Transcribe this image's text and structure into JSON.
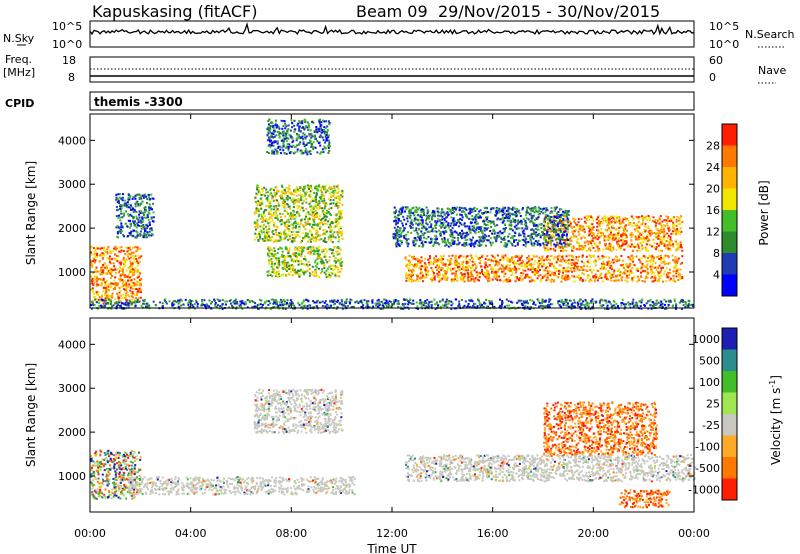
{
  "header": {
    "station": "Kapuskasing (fitACF)",
    "beam": "Beam 09",
    "dates": "29/Nov/2015 - 30/Nov/2015"
  },
  "noise_panel": {
    "left_label": "N.Sky",
    "left_ticks": [
      "10^5",
      "10^0"
    ],
    "right_ticks": [
      "10^5",
      "10^0"
    ],
    "right_label": "N.Search"
  },
  "freq_panel": {
    "left_label_1": "Freq.",
    "left_label_2": "[MHz]",
    "left_ticks": [
      "18",
      "8"
    ],
    "right_ticks": [
      "60",
      "0"
    ],
    "right_label": "Nave"
  },
  "cpid": {
    "label": "CPID",
    "program": "themis -3300"
  },
  "x_axis": {
    "label": "Time UT",
    "ticks": [
      "00:00",
      "04:00",
      "08:00",
      "12:00",
      "16:00",
      "20:00",
      "00:00"
    ]
  },
  "chart_data": [
    {
      "type": "heatmap",
      "name": "power",
      "xlabel": "Time UT",
      "ylabel": "Slant Range [km]",
      "xlim_hours": [
        0,
        24
      ],
      "ylim": [
        180,
        4600
      ],
      "y_ticks": [
        1000,
        2000,
        3000,
        4000
      ],
      "colorbar": {
        "label": "Power [dB]",
        "tick_labels": [
          "4",
          "8",
          "12",
          "16",
          "20",
          "24",
          "28"
        ],
        "colors": [
          "#0000ff",
          "#1e3cb4",
          "#2d8c2d",
          "#41be28",
          "#f0e600",
          "#ffb400",
          "#ff7800",
          "#ff1e00"
        ]
      },
      "echo_regions": [
        {
          "t": [
            0.0,
            2.0
          ],
          "range": [
            300,
            1600
          ],
          "power": "high"
        },
        {
          "t": [
            1.0,
            2.5
          ],
          "range": [
            1800,
            2800
          ],
          "power": "low"
        },
        {
          "t": [
            6.5,
            10.0
          ],
          "range": [
            1700,
            3000
          ],
          "power": "medium"
        },
        {
          "t": [
            7.0,
            9.5
          ],
          "range": [
            3700,
            4500
          ],
          "power": "low"
        },
        {
          "t": [
            7.0,
            10.0
          ],
          "range": [
            900,
            1600
          ],
          "power": "medium"
        },
        {
          "t": [
            12.5,
            23.5
          ],
          "range": [
            800,
            1400
          ],
          "power": "high"
        },
        {
          "t": [
            18.0,
            23.5
          ],
          "range": [
            1500,
            2300
          ],
          "power": "high"
        },
        {
          "t": [
            12.0,
            19.0
          ],
          "range": [
            1600,
            2500
          ],
          "power": "low"
        },
        {
          "t": [
            0.0,
            24.0
          ],
          "range": [
            180,
            400
          ],
          "power": "low"
        }
      ]
    },
    {
      "type": "heatmap",
      "name": "velocity",
      "xlabel": "Time UT",
      "ylabel": "Slant Range [km]",
      "xlim_hours": [
        0,
        24
      ],
      "ylim": [
        180,
        4600
      ],
      "y_ticks": [
        1000,
        2000,
        3000,
        4000
      ],
      "colorbar": {
        "label": "Velocity [m s^-1]",
        "tick_labels": [
          "1000",
          "500",
          "100",
          "25",
          "-25",
          "-100",
          "-500",
          "-1000"
        ],
        "colors": [
          "#1e1eb4",
          "#2d8c8c",
          "#41be28",
          "#a0e650",
          "#c8c8c0",
          "#ffaa28",
          "#ff7800",
          "#ff1e00"
        ]
      },
      "echo_regions": [
        {
          "t": [
            0.0,
            2.0
          ],
          "range": [
            500,
            1600
          ],
          "velocity": "mixed"
        },
        {
          "t": [
            1.5,
            10.5
          ],
          "range": [
            600,
            1000
          ],
          "velocity": "ground-scatter"
        },
        {
          "t": [
            6.5,
            10.0
          ],
          "range": [
            2000,
            3000
          ],
          "velocity": "ground-scatter"
        },
        {
          "t": [
            12.5,
            24.0
          ],
          "range": [
            900,
            1500
          ],
          "velocity": "ground-scatter"
        },
        {
          "t": [
            18.0,
            22.5
          ],
          "range": [
            1500,
            2700
          ],
          "velocity": "negative"
        },
        {
          "t": [
            21.0,
            23.0
          ],
          "range": [
            300,
            700
          ],
          "velocity": "negative"
        }
      ]
    }
  ]
}
